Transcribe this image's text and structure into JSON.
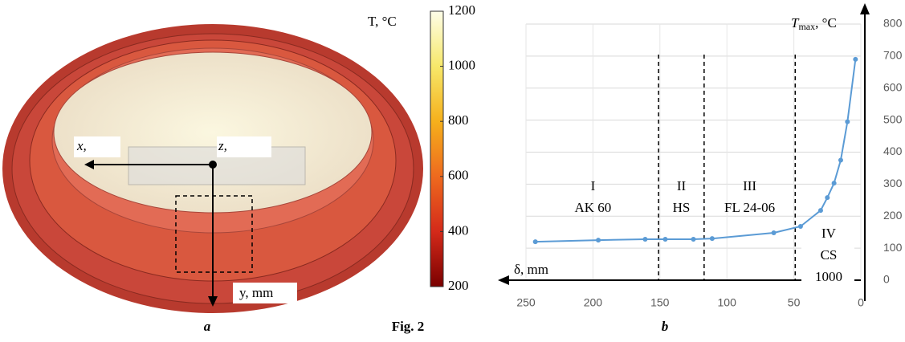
{
  "figure": {
    "caption": "Fig. 2",
    "panels": [
      "a",
      "b"
    ]
  },
  "chart_data": [
    {
      "type": "colorbar",
      "title": "T, °C",
      "ylim": [
        200,
        1200
      ],
      "yticks": [
        200,
        400,
        600,
        800,
        1000,
        1200
      ],
      "colormap": [
        "#7a0000",
        "#d42a1a",
        "#ee6a1e",
        "#f5b01c",
        "#f7e86a",
        "#fdfde8"
      ],
      "axis_labels": [
        "x,",
        "z,",
        "y, mm"
      ]
    },
    {
      "type": "line",
      "xlabel": "δ, mm",
      "ylabel": {
        "symbol": "T",
        "subscript": "max",
        "unit": ", °C"
      },
      "x": [
        243,
        196,
        161,
        146,
        125,
        111,
        65,
        45,
        30,
        25,
        20,
        15,
        10,
        4
      ],
      "values": [
        120,
        125,
        128,
        128,
        128,
        130,
        148,
        168,
        218,
        258,
        303,
        375,
        495,
        690
      ],
      "color": "#5b9bd5",
      "xlim": [
        250,
        0
      ],
      "ylim": [
        0,
        800
      ],
      "xticks": [
        250,
        200,
        150,
        100,
        50,
        0
      ],
      "yticks": [
        0,
        100,
        200,
        300,
        400,
        500,
        600,
        700,
        800
      ],
      "grid": true,
      "dividers": [
        151,
        117,
        49
      ],
      "regions": [
        {
          "x": 200,
          "lines": [
            "I",
            "AK 60"
          ]
        },
        {
          "x": 134,
          "lines": [
            "II",
            "HS"
          ]
        },
        {
          "x": 83,
          "lines": [
            "III",
            "FL 24-06"
          ]
        },
        {
          "x": 24,
          "lines": [
            "IV",
            "CS",
            "1000"
          ]
        }
      ]
    }
  ]
}
